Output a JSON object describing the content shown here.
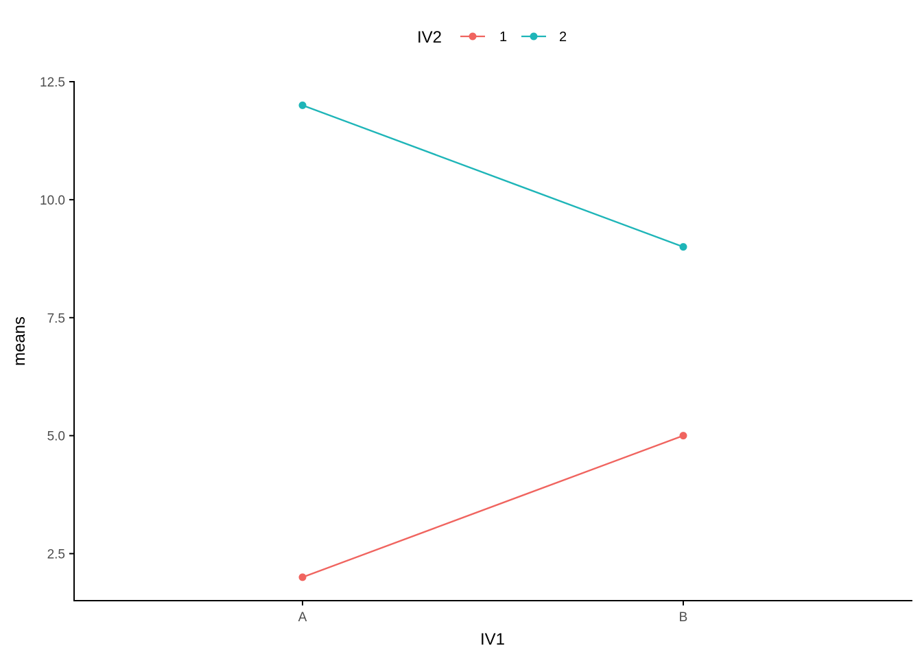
{
  "chart_data": {
    "type": "line",
    "xlabel": "IV1",
    "ylabel": "means",
    "categories": [
      "A",
      "B"
    ],
    "ylim": [
      1.5,
      12.5
    ],
    "yticks": [
      2.5,
      5.0,
      7.5,
      10.0,
      12.5
    ],
    "ytick_labels": [
      "2.5",
      "5.0",
      "7.5",
      "10.0",
      "12.5"
    ],
    "grid": false,
    "legend": {
      "title": "IV2",
      "position": "top"
    },
    "series": [
      {
        "name": "1",
        "color": "#F0645F",
        "values": [
          2,
          5
        ]
      },
      {
        "name": "2",
        "color": "#1EB5B8",
        "values": [
          12,
          9
        ]
      }
    ]
  }
}
